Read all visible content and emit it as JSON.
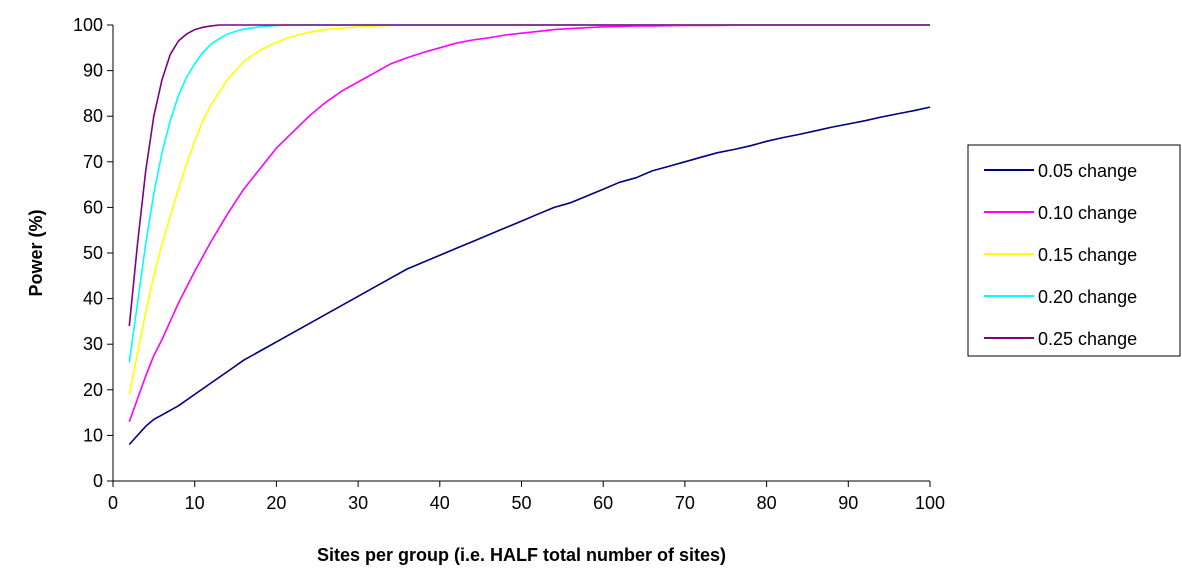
{
  "chart_data": {
    "type": "line",
    "xlabel": "Sites per group (i.e. HALF total number of sites)",
    "ylabel": "Power (%)",
    "xlim": [
      0,
      100
    ],
    "ylim": [
      0,
      100
    ],
    "xticks": [
      0,
      10,
      20,
      30,
      40,
      50,
      60,
      70,
      80,
      90,
      100
    ],
    "yticks": [
      0,
      10,
      20,
      30,
      40,
      50,
      60,
      70,
      80,
      90,
      100
    ],
    "grid": false,
    "legend_position": "right",
    "series": [
      {
        "name": "0.05 change",
        "color": "#000080",
        "x": [
          2,
          3,
          4,
          5,
          6,
          8,
          10,
          12,
          14,
          16,
          18,
          20,
          22,
          24,
          26,
          28,
          30,
          32,
          34,
          36,
          38,
          40,
          42,
          44,
          46,
          48,
          50,
          52,
          54,
          56,
          58,
          60,
          62,
          64,
          66,
          68,
          70,
          72,
          74,
          76,
          78,
          80,
          82,
          84,
          86,
          88,
          90,
          92,
          94,
          96,
          98,
          100
        ],
        "values": [
          8,
          10,
          12,
          13.5,
          14.5,
          16.5,
          19,
          21.5,
          24,
          26.5,
          28.5,
          30.5,
          32.5,
          34.5,
          36.5,
          38.5,
          40.5,
          42.5,
          44.5,
          46.5,
          48,
          49.5,
          51,
          52.5,
          54,
          55.5,
          57,
          58.5,
          60,
          61,
          62.5,
          64,
          65.5,
          66.5,
          68,
          69,
          70,
          71,
          72,
          72.7,
          73.5,
          74.5,
          75.3,
          76,
          76.8,
          77.6,
          78.3,
          79,
          79.8,
          80.5,
          81.2,
          82
        ]
      },
      {
        "name": "0.10 change",
        "color": "#FF00FF",
        "x": [
          2,
          3,
          4,
          5,
          6,
          8,
          10,
          12,
          14,
          16,
          18,
          20,
          22,
          24,
          26,
          28,
          30,
          32,
          34,
          36,
          38,
          40,
          42,
          44,
          46,
          48,
          50,
          52,
          54,
          56,
          58,
          60,
          62,
          64,
          66,
          70,
          74,
          77,
          80,
          90,
          100
        ],
        "values": [
          13,
          18,
          23,
          27.5,
          31,
          39,
          46,
          52.5,
          58.5,
          64,
          68.5,
          73,
          76.5,
          80,
          83,
          85.5,
          87.5,
          89.5,
          91.5,
          92.8,
          94,
          95,
          96,
          96.7,
          97.2,
          97.8,
          98.2,
          98.6,
          99,
          99.2,
          99.4,
          99.6,
          99.7,
          99.8,
          99.8,
          99.9,
          99.9,
          100,
          100,
          100,
          100
        ]
      },
      {
        "name": "0.15 change",
        "color": "#FFFF00",
        "x": [
          2,
          3,
          4,
          5,
          6,
          7,
          8,
          9,
          10,
          11,
          12,
          14,
          16,
          18,
          20,
          22,
          24,
          26,
          28,
          30,
          32,
          34,
          36,
          40,
          50,
          60,
          70,
          80,
          90,
          100
        ],
        "values": [
          19,
          28,
          37,
          45,
          52,
          58,
          64,
          69.5,
          74.5,
          79,
          82.5,
          88,
          92,
          94.5,
          96.2,
          97.5,
          98.4,
          99,
          99.3,
          99.6,
          99.8,
          99.9,
          100,
          100,
          100,
          100,
          100,
          100,
          100,
          100
        ]
      },
      {
        "name": "0.20 change",
        "color": "#00FFFF",
        "x": [
          2,
          3,
          4,
          5,
          6,
          7,
          8,
          9,
          10,
          11,
          12,
          13,
          14,
          15,
          16,
          18,
          20,
          22,
          25,
          30,
          40,
          50,
          60,
          70,
          80,
          90,
          100
        ],
        "values": [
          26,
          39,
          52,
          63,
          72,
          79,
          84.5,
          88.5,
          91.5,
          94,
          95.8,
          97,
          98,
          98.6,
          99.1,
          99.6,
          99.9,
          100,
          100,
          100,
          100,
          100,
          100,
          100,
          100,
          100,
          100
        ]
      },
      {
        "name": "0.25 change",
        "color": "#800080",
        "x": [
          2,
          3,
          4,
          5,
          6,
          7,
          8,
          9,
          10,
          11,
          12,
          13,
          15,
          18,
          20,
          25,
          30,
          40,
          50,
          60,
          70,
          80,
          90,
          100
        ],
        "values": [
          34,
          52,
          68,
          80,
          88,
          93.5,
          96.5,
          98,
          99,
          99.5,
          99.8,
          100,
          100,
          100,
          100,
          100,
          100,
          100,
          100,
          100,
          100,
          100,
          100,
          100
        ]
      }
    ]
  }
}
